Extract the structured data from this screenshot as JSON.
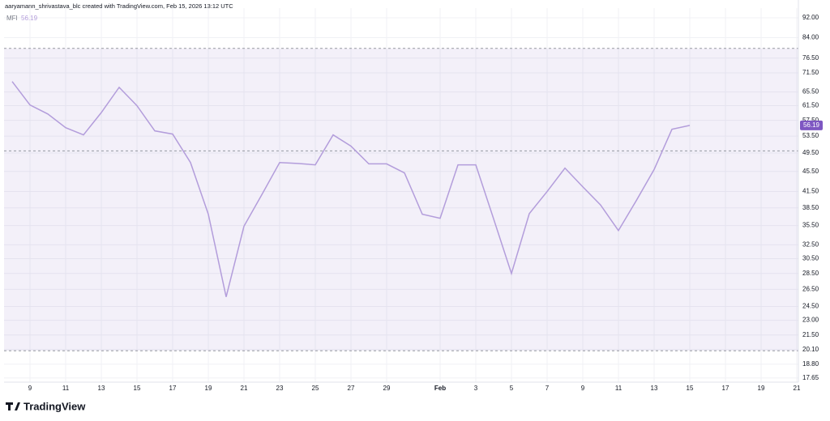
{
  "header": "aaryamann_shrivastava_blc created with TradingView.com, Feb 15, 2026 13:12 UTC",
  "footer_logo": "TradingView",
  "chart_data": {
    "type": "line",
    "x": [
      "01-08",
      "01-09",
      "01-10",
      "01-11",
      "01-12",
      "01-13",
      "01-14",
      "01-15",
      "01-16",
      "01-17",
      "01-18",
      "01-19",
      "01-20",
      "01-21",
      "01-22",
      "01-23",
      "01-24",
      "01-25",
      "01-26",
      "01-27",
      "01-28",
      "01-29",
      "01-30",
      "01-31",
      "02-01",
      "02-02",
      "02-03",
      "02-04",
      "02-05",
      "02-06",
      "02-07",
      "02-08",
      "02-09",
      "02-10",
      "02-11",
      "02-12",
      "02-13",
      "02-14",
      "02-15"
    ],
    "series": [
      {
        "name": "MFI",
        "color": "#b39ddb",
        "values": [
          68.7,
          61.7,
          59.2,
          55.6,
          53.8,
          59.6,
          66.9,
          61.5,
          54.8,
          54.0,
          47.4,
          37.4,
          25.6,
          35.4,
          40.9,
          47.4,
          47.2,
          46.9,
          53.8,
          51.1,
          47.1,
          47.1,
          45.2,
          37.4,
          36.7,
          46.9,
          46.9,
          36.6,
          28.5,
          37.5,
          41.5,
          46.2,
          42.4,
          39.0,
          34.7,
          39.8,
          45.9,
          55.2,
          56.19
        ]
      }
    ],
    "ylim": [
      17.32,
      96.2
    ],
    "log_scale": true,
    "grid": true,
    "yticks": [
      {
        "value": 92,
        "label": "92.00"
      },
      {
        "value": 84,
        "label": "84.00"
      },
      {
        "value": 76.5,
        "label": "76.50"
      },
      {
        "value": 71.5,
        "label": "71.50"
      },
      {
        "value": 65.5,
        "label": "65.50"
      },
      {
        "value": 61.5,
        "label": "61.50"
      },
      {
        "value": 57.5,
        "label": "57.50"
      },
      {
        "value": 53.5,
        "label": "53.50"
      },
      {
        "value": 49.5,
        "label": "49.50"
      },
      {
        "value": 45.5,
        "label": "45.50"
      },
      {
        "value": 41.5,
        "label": "41.50"
      },
      {
        "value": 38.5,
        "label": "38.50"
      },
      {
        "value": 35.5,
        "label": "35.50"
      },
      {
        "value": 32.5,
        "label": "32.50"
      },
      {
        "value": 30.5,
        "label": "30.50"
      },
      {
        "value": 28.5,
        "label": "28.50"
      },
      {
        "value": 26.5,
        "label": "26.50"
      },
      {
        "value": 24.5,
        "label": "24.50"
      },
      {
        "value": 23,
        "label": "23.00"
      },
      {
        "value": 21.5,
        "label": "21.50"
      },
      {
        "value": 20.1,
        "label": "20.10"
      },
      {
        "value": 18.8,
        "label": "18.80"
      },
      {
        "value": 17.65,
        "label": "17.65"
      }
    ],
    "xticks": [
      {
        "value": "01-09",
        "label": "9"
      },
      {
        "value": "01-11",
        "label": "11"
      },
      {
        "value": "01-13",
        "label": "13"
      },
      {
        "value": "01-15",
        "label": "15"
      },
      {
        "value": "01-17",
        "label": "17"
      },
      {
        "value": "01-19",
        "label": "19"
      },
      {
        "value": "01-21",
        "label": "21"
      },
      {
        "value": "01-23",
        "label": "23"
      },
      {
        "value": "01-25",
        "label": "25"
      },
      {
        "value": "01-27",
        "label": "27"
      },
      {
        "value": "01-29",
        "label": "29"
      },
      {
        "value": "02-01",
        "label": "Feb"
      },
      {
        "value": "02-03",
        "label": "3"
      },
      {
        "value": "02-05",
        "label": "5"
      },
      {
        "value": "02-07",
        "label": "7"
      },
      {
        "value": "02-09",
        "label": "9"
      },
      {
        "value": "02-11",
        "label": "11"
      },
      {
        "value": "02-13",
        "label": "13"
      },
      {
        "value": "02-15",
        "label": "15"
      },
      {
        "value": "02-17",
        "label": "17"
      },
      {
        "value": "02-19",
        "label": "19"
      },
      {
        "value": "02-21",
        "label": "21"
      }
    ],
    "bands": {
      "upper": 80,
      "middle": 50,
      "lower": 20,
      "fill": "rgba(126,87,194,0.09)",
      "line_color": "#9598a1"
    }
  }
}
